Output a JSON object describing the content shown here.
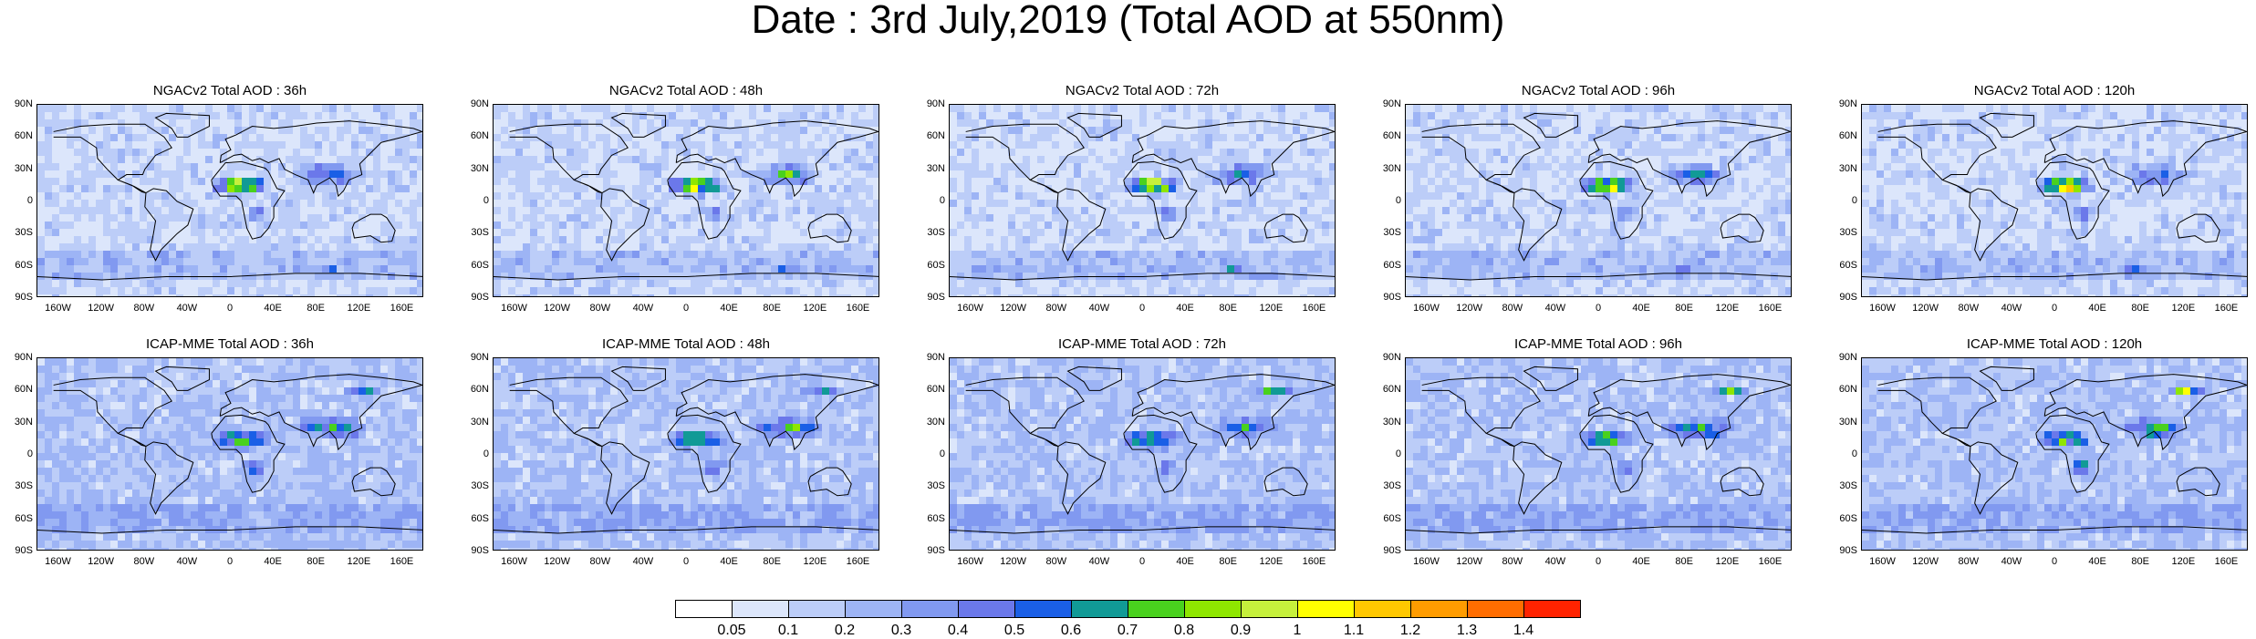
{
  "title": "Date : 3rd July,2019 (Total AOD at 550nm)",
  "panels": [
    {
      "title": "NGACv2 Total AOD : 36h"
    },
    {
      "title": "NGACv2 Total AOD : 48h"
    },
    {
      "title": "NGACv2 Total AOD : 72h"
    },
    {
      "title": "NGACv2 Total AOD : 96h"
    },
    {
      "title": "NGACv2 Total AOD : 120h"
    },
    {
      "title": "ICAP-MME Total AOD : 36h"
    },
    {
      "title": "ICAP-MME Total AOD : 48h"
    },
    {
      "title": "ICAP-MME Total AOD : 72h"
    },
    {
      "title": "ICAP-MME Total AOD : 96h"
    },
    {
      "title": "ICAP-MME Total AOD : 120h"
    }
  ],
  "lat_labels": [
    "90N",
    "60N",
    "30N",
    "0",
    "30S",
    "60S",
    "90S"
  ],
  "lon_labels": [
    "160W",
    "120W",
    "80W",
    "40W",
    "0",
    "40E",
    "80E",
    "120E",
    "160E"
  ],
  "colorbar": {
    "labels": [
      "0.05",
      "0.1",
      "0.2",
      "0.3",
      "0.4",
      "0.5",
      "0.6",
      "0.7",
      "0.8",
      "0.9",
      "1",
      "1.1",
      "1.2",
      "1.3",
      "1.4"
    ],
    "colors": [
      "#ffffff",
      "#dce6fb",
      "#bccdf8",
      "#9db4f5",
      "#8199f0",
      "#6b78ea",
      "#1a5fe6",
      "#119a96",
      "#49d11e",
      "#8fe600",
      "#c6f03c",
      "#ffff00",
      "#ffc800",
      "#ff9c00",
      "#ff6d00",
      "#ff2300"
    ]
  }
}
